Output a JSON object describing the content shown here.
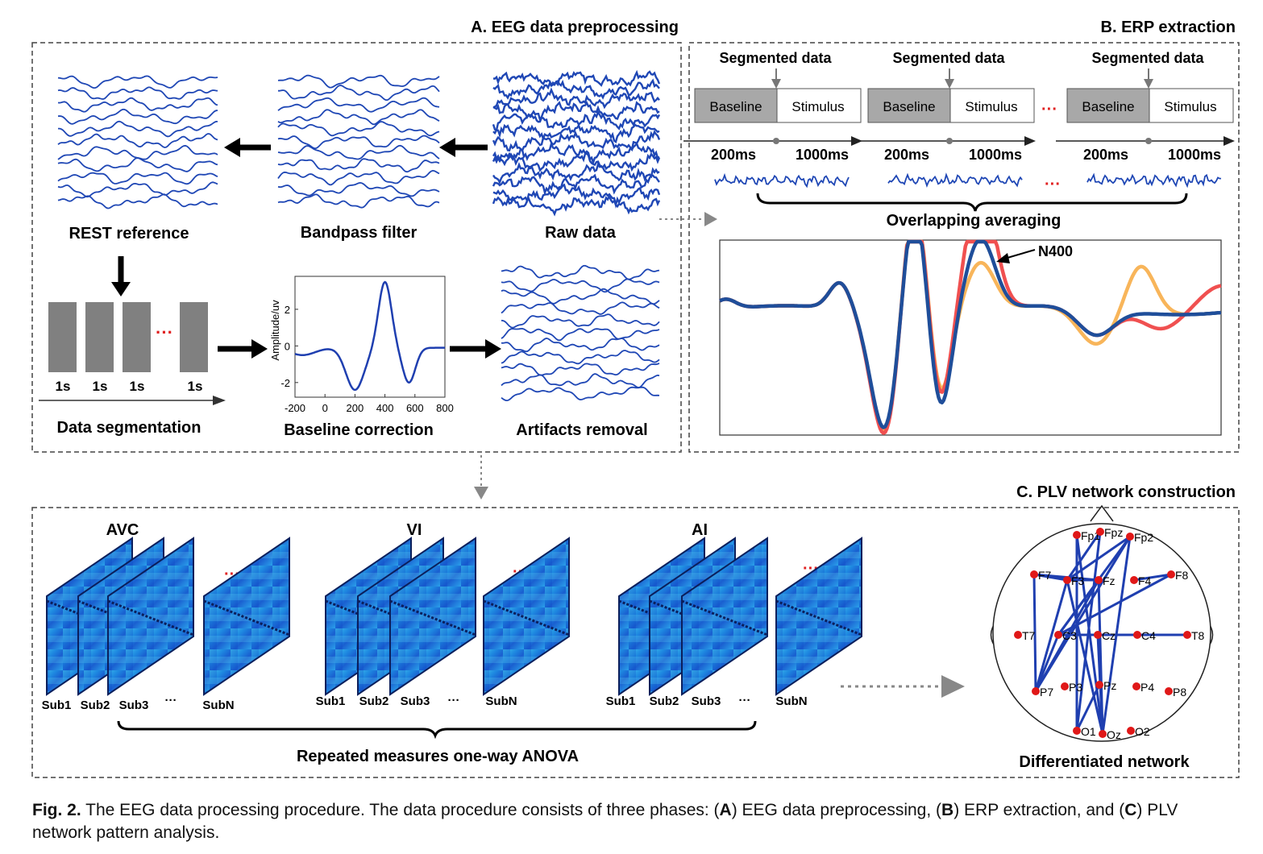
{
  "panel_a": {
    "title": "A. EEG  data preprocessing",
    "rest_reference": "REST reference",
    "bandpass_filter": "Bandpass filter",
    "raw_data": "Raw  data",
    "segment_labels": [
      "1s",
      "1s",
      "1s",
      "1s"
    ],
    "data_segmentation": "Data segmentation",
    "baseline_correction": "Baseline correction",
    "artifacts_removal": "Artifacts removal",
    "plot": {
      "ylabel": "Amplitude/uv",
      "xticks": [
        "-200",
        "0",
        "200",
        "400",
        "600",
        "800"
      ],
      "yticks": [
        "2",
        "0",
        "-2"
      ],
      "xlim": [
        -200,
        800
      ],
      "ylim": [
        -2.8,
        3.8
      ]
    }
  },
  "panel_b": {
    "title": "B. ERP extraction",
    "segmented_data": "Segmented data",
    "baseline": "Baseline",
    "stimulus": "Stimulus",
    "t_200": "200ms",
    "t_1000": "1000ms",
    "overlapping": "Overlapping averaging",
    "n400": "N400",
    "colors": [
      "#f05050",
      "#f8b55a",
      "#1f4e9a"
    ]
  },
  "panel_c": {
    "title": "C. PLV network construction",
    "groups": [
      "AVC",
      "VI",
      "AI"
    ],
    "subjects": [
      "Sub1",
      "Sub2",
      "Sub3",
      "···",
      "SubN"
    ],
    "anova": "Repeated measures one-way ANOVA",
    "network": "Differentiated network",
    "electrodes": [
      "Fp1",
      "Fpz",
      "Fp2",
      "F7",
      "F3",
      "Fz",
      "F4",
      "F8",
      "T7",
      "C3",
      "Cz",
      "C4",
      "T8",
      "P7",
      "P3",
      "Pz",
      "P4",
      "P8",
      "O1",
      "Oz",
      "O2"
    ]
  },
  "caption": {
    "fig": "Fig. 2.",
    "text1": " The EEG data processing procedure. The data procedure consists of three phases: (",
    "a": "A",
    "text2": ") EEG data preprocessing, (",
    "b": "B",
    "text3": ") ERP extraction, and (",
    "c": "C",
    "text4": ") PLV network pattern analysis."
  }
}
